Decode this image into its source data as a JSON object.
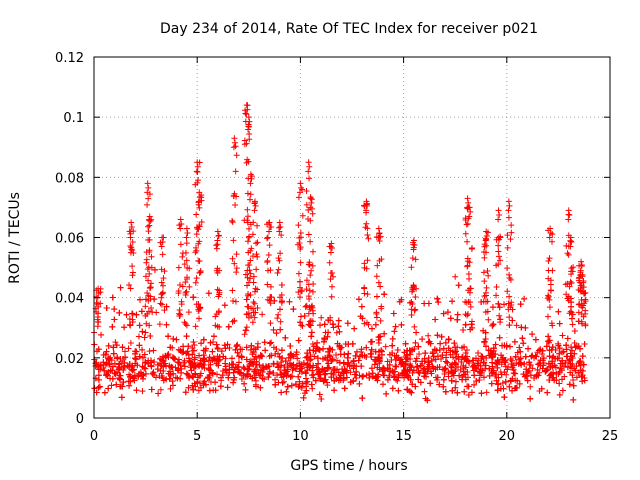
{
  "chart_data": {
    "type": "scatter",
    "title": "Day 234 of 2014, Rate Of TEC Index for receiver p021",
    "xlabel": "GPS time / hours",
    "ylabel": "ROTI / TECUs",
    "xlim": [
      0,
      25
    ],
    "ylim": [
      0,
      0.12
    ],
    "xticks": [
      0,
      5,
      10,
      15,
      20,
      25
    ],
    "yticks": [
      0,
      0.02,
      0.04,
      0.06,
      0.08,
      0.1,
      0.12
    ],
    "xtick_labels": [
      "0",
      "5",
      "10",
      "15",
      "20",
      "25"
    ],
    "ytick_labels": [
      "0",
      "0.02",
      "0.04",
      "0.06",
      "0.08",
      "0.1",
      "0.12"
    ],
    "grid": true,
    "marker": "+",
    "series_color": "#ff0000",
    "x_data_range": [
      0,
      23.8
    ],
    "band_center": 0.017,
    "band_spread": 0.007,
    "peaks": [
      {
        "x": 0.2,
        "y": 0.043
      },
      {
        "x": 1.8,
        "y": 0.065
      },
      {
        "x": 2.6,
        "y": 0.078
      },
      {
        "x": 2.7,
        "y": 0.067
      },
      {
        "x": 3.3,
        "y": 0.06
      },
      {
        "x": 4.2,
        "y": 0.066
      },
      {
        "x": 4.5,
        "y": 0.063
      },
      {
        "x": 5.0,
        "y": 0.085
      },
      {
        "x": 5.1,
        "y": 0.075
      },
      {
        "x": 6.0,
        "y": 0.062
      },
      {
        "x": 6.8,
        "y": 0.093
      },
      {
        "x": 7.4,
        "y": 0.104
      },
      {
        "x": 7.5,
        "y": 0.1
      },
      {
        "x": 7.6,
        "y": 0.081
      },
      {
        "x": 7.8,
        "y": 0.072
      },
      {
        "x": 8.5,
        "y": 0.065
      },
      {
        "x": 9.0,
        "y": 0.065
      },
      {
        "x": 10.0,
        "y": 0.078
      },
      {
        "x": 10.4,
        "y": 0.085
      },
      {
        "x": 10.5,
        "y": 0.073
      },
      {
        "x": 11.5,
        "y": 0.058
      },
      {
        "x": 13.2,
        "y": 0.072
      },
      {
        "x": 13.8,
        "y": 0.063
      },
      {
        "x": 15.5,
        "y": 0.059
      },
      {
        "x": 18.1,
        "y": 0.073
      },
      {
        "x": 18.2,
        "y": 0.07
      },
      {
        "x": 19.0,
        "y": 0.062
      },
      {
        "x": 19.6,
        "y": 0.069
      },
      {
        "x": 20.1,
        "y": 0.072
      },
      {
        "x": 22.1,
        "y": 0.063
      },
      {
        "x": 23.0,
        "y": 0.069
      },
      {
        "x": 23.1,
        "y": 0.06
      },
      {
        "x": 23.6,
        "y": 0.052
      },
      {
        "x": 23.7,
        "y": 0.045
      }
    ]
  }
}
